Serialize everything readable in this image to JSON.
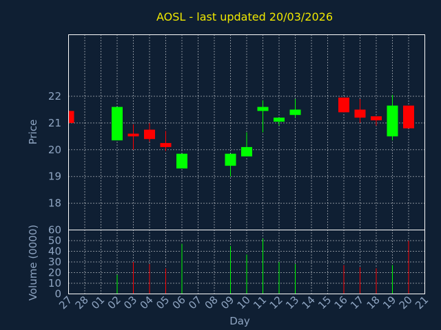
{
  "chart_data": {
    "type": "candlestick",
    "title": "AOSL - last updated 20/03/2026",
    "xlabel": "Day",
    "price_panel": {
      "ylabel": "Price",
      "ylim": [
        17,
        24.3
      ],
      "yticks": [
        18,
        19,
        20,
        21,
        22
      ]
    },
    "volume_panel": {
      "ylabel": "Volume (0000)",
      "ylim": [
        0,
        60
      ],
      "yticks": [
        0,
        10,
        20,
        30,
        40,
        50,
        60
      ]
    },
    "x_tick_labels": [
      "27",
      "28",
      "01",
      "02",
      "03",
      "04",
      "05",
      "06",
      "07",
      "08",
      "09",
      "10",
      "11",
      "12",
      "13",
      "14",
      "15",
      "16",
      "17",
      "18",
      "19",
      "20",
      "21"
    ],
    "candles": [
      {
        "x": 0,
        "open": 21.45,
        "close": 21.0,
        "high": 21.45,
        "low": 21.0,
        "volume": 0
      },
      {
        "x": 3,
        "open": 20.35,
        "close": 21.6,
        "high": 21.6,
        "low": 20.35,
        "volume": 18
      },
      {
        "x": 4,
        "open": 20.6,
        "close": 20.5,
        "high": 20.95,
        "low": 20.0,
        "volume": 30
      },
      {
        "x": 5,
        "open": 20.75,
        "close": 20.4,
        "high": 21.0,
        "low": 20.3,
        "volume": 28
      },
      {
        "x": 6,
        "open": 20.25,
        "close": 20.1,
        "high": 20.7,
        "low": 19.95,
        "volume": 24
      },
      {
        "x": 7,
        "open": 19.3,
        "close": 19.85,
        "high": 19.85,
        "low": 19.3,
        "volume": 47
      },
      {
        "x": 10,
        "open": 19.4,
        "close": 19.85,
        "high": 19.85,
        "low": 19.0,
        "volume": 45
      },
      {
        "x": 11,
        "open": 19.75,
        "close": 20.1,
        "high": 20.65,
        "low": 19.75,
        "volume": 37
      },
      {
        "x": 12,
        "open": 21.45,
        "close": 21.6,
        "high": 21.85,
        "low": 20.65,
        "volume": 52
      },
      {
        "x": 13,
        "open": 21.05,
        "close": 21.2,
        "high": 21.2,
        "low": 20.9,
        "volume": 30
      },
      {
        "x": 14,
        "open": 21.3,
        "close": 21.5,
        "high": 21.9,
        "low": 21.2,
        "volume": 28
      },
      {
        "x": 17,
        "open": 21.95,
        "close": 21.4,
        "high": 21.95,
        "low": 21.4,
        "volume": 27
      },
      {
        "x": 18,
        "open": 21.5,
        "close": 21.2,
        "high": 21.9,
        "low": 21.0,
        "volume": 25
      },
      {
        "x": 19,
        "open": 21.25,
        "close": 21.1,
        "high": 21.25,
        "low": 20.9,
        "volume": 24
      },
      {
        "x": 20,
        "open": 20.5,
        "close": 21.65,
        "high": 22.05,
        "low": 20.35,
        "volume": 27
      },
      {
        "x": 21,
        "open": 21.65,
        "close": 20.8,
        "high": 21.65,
        "low": 20.8,
        "volume": 50
      }
    ],
    "grid": true,
    "colors": {
      "up": "#00ff00",
      "down": "#ff0000",
      "title": "#f0e800",
      "axis_text": "#8fa5c2",
      "background": "#0f1f33",
      "grid": "#ffffff"
    }
  }
}
